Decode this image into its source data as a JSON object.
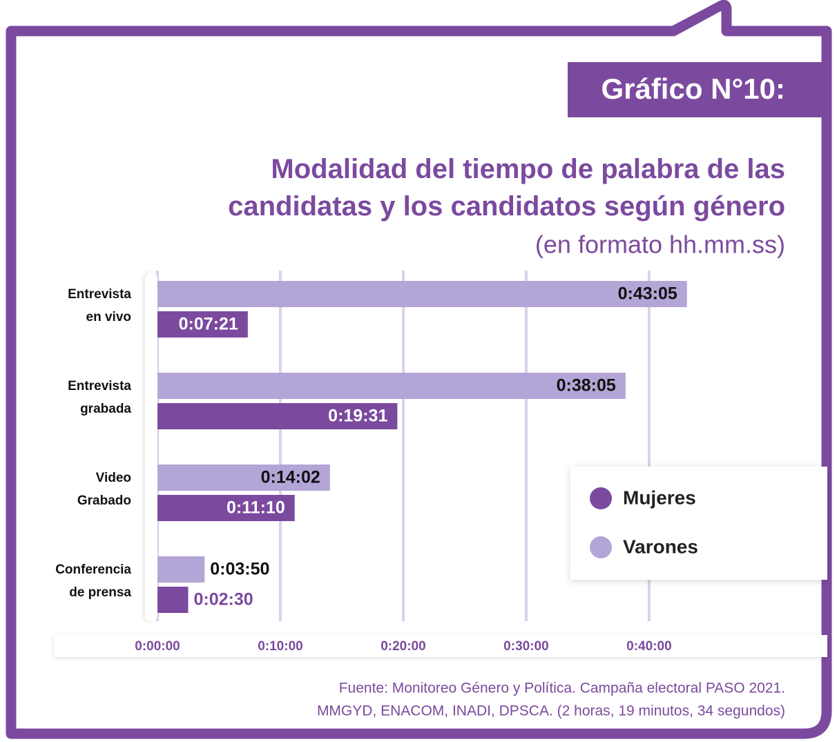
{
  "chart_data": {
    "type": "hbar",
    "badge": "Gráfico N°10:",
    "title": "Modalidad del tiempo de palabra de las candidatas y los candidatos según género",
    "subtitle": "(en formato hh.mm.ss)",
    "categories": [
      "Entrevista en vivo",
      "Entrevista grabada",
      "Video Grabado",
      "Conferencia de prensa"
    ],
    "series": [
      {
        "name": "Mujeres",
        "color": "#7b4a9e",
        "values": [
          441,
          1171,
          670,
          150
        ],
        "value_labels": [
          "0:07:21",
          "0:19:31",
          "0:11:10",
          "0:02:30"
        ]
      },
      {
        "name": "Varones",
        "color": "#b3a5d6",
        "values": [
          2585,
          2285,
          842,
          230
        ],
        "value_labels": [
          "0:43:05",
          "0:38:05",
          "0:14:02",
          "0:03:50"
        ]
      }
    ],
    "xlim": [
      0,
      3260
    ],
    "xticks": [
      {
        "value": 0,
        "label": "0:00:00"
      },
      {
        "value": 600,
        "label": "0:10:00"
      },
      {
        "value": 1200,
        "label": "0:20:00"
      },
      {
        "value": 1800,
        "label": "0:30:00"
      },
      {
        "value": 2400,
        "label": "0:40:00"
      }
    ],
    "grid": true,
    "source": [
      "Fuente: Monitoreo Género y Política. Campaña electoral PASO 2021.",
      "MMGYD, ENACOM, INADI, DPSCA. (2 horas, 19 minutos, 34 segundos)"
    ]
  }
}
